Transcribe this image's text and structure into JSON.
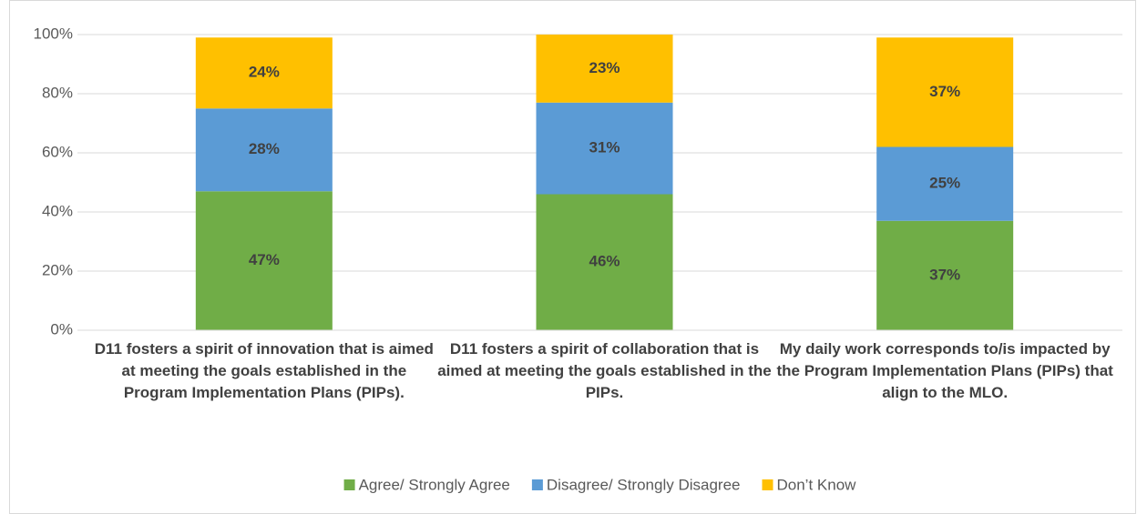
{
  "chart_data": {
    "type": "stacked_bar",
    "categories": [
      "D11 fosters a spirit of innovation that is aimed at meeting the goals established in the Program Implementation Plans (PIPs).",
      "D11 fosters a spirit of collaboration that is aimed at meeting the goals established in the PIPs.",
      "My daily work corresponds to/is impacted by the Program Implementation Plans (PIPs) that align to the MLO."
    ],
    "series": [
      {
        "name": "Agree/ Strongly Agree",
        "color": "#70ad47",
        "values": [
          47,
          46,
          37
        ],
        "value_labels": [
          "47%",
          "46%",
          "37%"
        ]
      },
      {
        "name": "Disagree/ Strongly Disagree",
        "color": "#5b9bd5",
        "values": [
          28,
          31,
          25
        ],
        "value_labels": [
          "28%",
          "31%",
          "25%"
        ]
      },
      {
        "name": "Don’t Know",
        "color": "#ffc000",
        "values": [
          24,
          23,
          37
        ],
        "value_labels": [
          "24%",
          "23%",
          "37%"
        ]
      }
    ],
    "ylim": [
      0,
      100
    ],
    "yticks": [
      {
        "value": 0,
        "label": "0%"
      },
      {
        "value": 20,
        "label": "20%"
      },
      {
        "value": 40,
        "label": "40%"
      },
      {
        "value": 60,
        "label": "60%"
      },
      {
        "value": 80,
        "label": "80%"
      },
      {
        "value": 100,
        "label": "100%"
      }
    ],
    "grid": true,
    "legend": "bottom"
  }
}
